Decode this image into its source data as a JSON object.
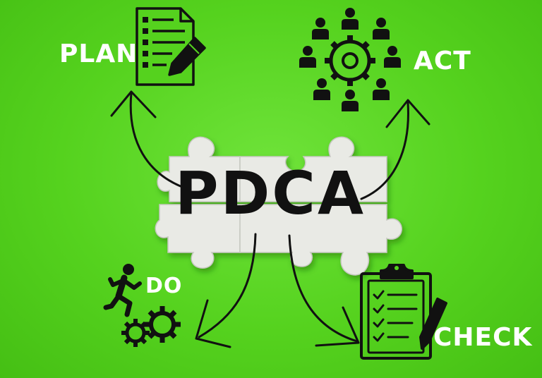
{
  "labels": {
    "plan": "PLAN",
    "act": "ACT",
    "do": "DO",
    "check": "CHECK"
  },
  "center": {
    "title": "PDCA"
  },
  "icons": {
    "plan": "document-with-pencil-icon",
    "act": "people-around-gear-icon",
    "do": "running-person-with-gears-icon",
    "check": "clipboard-checklist-with-pencil-icon"
  },
  "colors": {
    "background": "#55d21e",
    "puzzle": "#e9eae5",
    "ink": "#111111",
    "label": "#ffffff"
  }
}
